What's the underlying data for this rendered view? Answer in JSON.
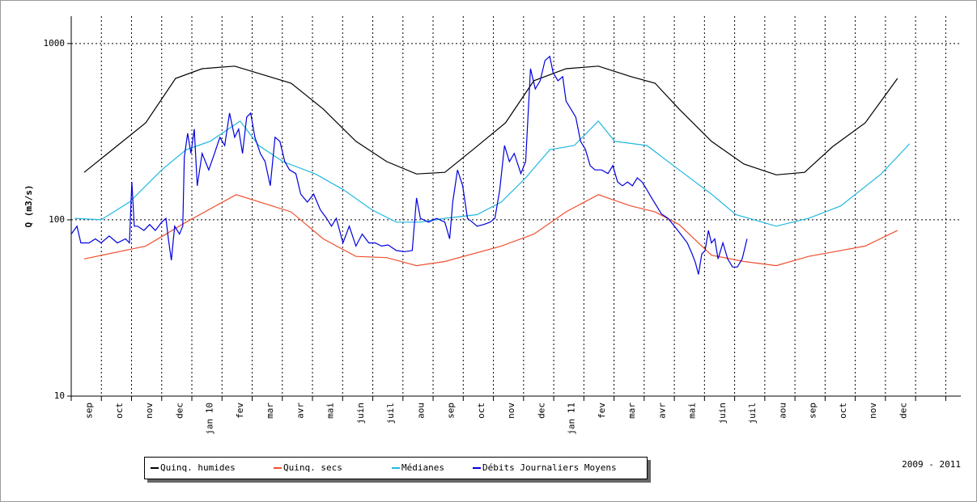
{
  "chart_data": {
    "type": "line",
    "y_label": "Q (m3/s)",
    "annotation": "2009 - 2011",
    "ylog": true,
    "grid": true,
    "ylim": [
      10,
      1430
    ],
    "yticks": [
      10,
      100,
      1000
    ],
    "xlim": [
      0,
      29.5
    ],
    "xticks": [
      {
        "value": 0,
        "label": "sep"
      },
      {
        "value": 1,
        "label": "oct"
      },
      {
        "value": 2,
        "label": "nov"
      },
      {
        "value": 3,
        "label": "dec"
      },
      {
        "value": 4,
        "label": "jan 10"
      },
      {
        "value": 5,
        "label": "fev"
      },
      {
        "value": 6,
        "label": "mar"
      },
      {
        "value": 7,
        "label": "avr"
      },
      {
        "value": 8,
        "label": "mai"
      },
      {
        "value": 9,
        "label": "juin"
      },
      {
        "value": 10,
        "label": "juil"
      },
      {
        "value": 11,
        "label": "aou"
      },
      {
        "value": 12,
        "label": "sep"
      },
      {
        "value": 13,
        "label": "oct"
      },
      {
        "value": 14,
        "label": "nov"
      },
      {
        "value": 15,
        "label": "dec"
      },
      {
        "value": 16,
        "label": "jan 11"
      },
      {
        "value": 17,
        "label": "fev"
      },
      {
        "value": 18,
        "label": "mar"
      },
      {
        "value": 19,
        "label": "avr"
      },
      {
        "value": 20,
        "label": "mai"
      },
      {
        "value": 21,
        "label": "juin"
      },
      {
        "value": 22,
        "label": "juil"
      },
      {
        "value": 23,
        "label": "aou"
      },
      {
        "value": 24,
        "label": "sep"
      },
      {
        "value": 25,
        "label": "oct"
      },
      {
        "value": 26,
        "label": "nov"
      },
      {
        "value": 27,
        "label": "dec"
      },
      {
        "value": 28,
        "label": null
      },
      {
        "value": 29,
        "label": null
      }
    ],
    "series": [
      {
        "name": "Quinq. humides",
        "color": "#000000",
        "x": [
          0.43,
          2.47,
          3.46,
          4.34,
          5.42,
          7.29,
          8.36,
          9.44,
          10.46,
          11.45,
          12.39,
          13.32,
          14.4,
          15.34,
          16.41,
          17.48,
          18.55,
          19.36,
          20.16,
          21.23,
          22.31,
          23.38,
          24.32,
          25.25,
          26.33,
          27.4
        ],
        "values": [
          186,
          355,
          634,
          720,
          745,
          596,
          425,
          279,
          214,
          182,
          186,
          250,
          355,
          615,
          720,
          745,
          650,
          596,
          425,
          279,
          207,
          180,
          186,
          260,
          355,
          634
        ]
      },
      {
        "name": "Quinq. secs",
        "color": "#f05030",
        "x": [
          0.43,
          2.47,
          3.81,
          5.47,
          7.29,
          8.36,
          9.44,
          10.46,
          11.45,
          12.39,
          14.26,
          15.34,
          16.41,
          17.48,
          18.55,
          19.36,
          20.16,
          21.23,
          22.31,
          23.38,
          24.45,
          26.33,
          27.4
        ],
        "values": [
          60,
          71,
          97,
          139,
          111,
          78,
          62,
          61,
          55,
          58,
          71,
          83,
          111,
          139,
          120,
          111,
          94,
          63,
          58,
          55,
          62,
          71,
          87
        ]
      },
      {
        "name": "Médianes",
        "color": "#20b8e0",
        "x": [
          0.11,
          0.99,
          1.93,
          3.0,
          3.81,
          4.61,
          5.6,
          6.22,
          7.02,
          8.1,
          9.03,
          9.97,
          10.78,
          11.58,
          12.39,
          13.46,
          14.26,
          15.07,
          15.87,
          16.68,
          17.48,
          18.02,
          19.09,
          20.16,
          21.23,
          22.04,
          23.38,
          24.45,
          25.52,
          26.86,
          27.8
        ],
        "values": [
          102,
          100,
          126,
          192,
          250,
          279,
          363,
          264,
          214,
          182,
          148,
          114,
          97,
          97,
          102,
          107,
          126,
          173,
          250,
          264,
          363,
          279,
          264,
          192,
          140,
          107,
          92,
          102,
          120,
          182,
          270
        ]
      },
      {
        "name": "Débits Journaliers Moyens",
        "color": "#0000dd",
        "x": [
          0,
          0.19,
          0.32,
          0.59,
          0.8,
          0.99,
          1.26,
          1.53,
          1.8,
          1.93,
          2.01,
          2.09,
          2.2,
          2.41,
          2.6,
          2.79,
          3.0,
          3.14,
          3.22,
          3.32,
          3.43,
          3.59,
          3.7,
          3.75,
          3.86,
          3.97,
          4.08,
          4.18,
          4.34,
          4.56,
          4.75,
          4.93,
          5.09,
          5.25,
          5.42,
          5.55,
          5.68,
          5.82,
          5.95,
          6.09,
          6.27,
          6.43,
          6.6,
          6.76,
          6.92,
          7.08,
          7.24,
          7.45,
          7.61,
          7.83,
          8.04,
          8.26,
          8.47,
          8.63,
          8.79,
          9.01,
          9.22,
          9.44,
          9.65,
          9.87,
          10.08,
          10.29,
          10.51,
          10.78,
          11.05,
          11.31,
          11.45,
          11.58,
          11.85,
          12.12,
          12.39,
          12.55,
          12.65,
          12.81,
          12.98,
          13.14,
          13.3,
          13.46,
          13.67,
          13.89,
          14.05,
          14.21,
          14.37,
          14.53,
          14.69,
          14.91,
          15.07,
          15.23,
          15.39,
          15.55,
          15.71,
          15.87,
          15.98,
          16.14,
          16.3,
          16.41,
          16.57,
          16.73,
          16.89,
          17.05,
          17.21,
          17.37,
          17.59,
          17.8,
          17.96,
          18.12,
          18.28,
          18.45,
          18.61,
          18.77,
          18.93,
          19.09,
          19.25,
          19.41,
          19.57,
          19.79,
          20.0,
          20.21,
          20.43,
          20.59,
          20.7,
          20.8,
          20.91,
          21.02,
          21.13,
          21.23,
          21.34,
          21.45,
          21.61,
          21.77,
          21.93,
          22.09,
          22.25,
          22.41
        ],
        "values": [
          83,
          92,
          74,
          74,
          78,
          74,
          81,
          74,
          78,
          74,
          164,
          92,
          92,
          87,
          94,
          87,
          97,
          102,
          78,
          59,
          92,
          83,
          92,
          226,
          310,
          238,
          327,
          156,
          238,
          192,
          238,
          294,
          264,
          403,
          294,
          327,
          238,
          383,
          403,
          294,
          238,
          214,
          156,
          294,
          279,
          214,
          192,
          183,
          140,
          126,
          140,
          114,
          102,
          92,
          102,
          74,
          92,
          71,
          83,
          74,
          74,
          71,
          72,
          67,
          66,
          67,
          133,
          102,
          97,
          102,
          97,
          78,
          126,
          192,
          156,
          102,
          97,
          92,
          94,
          97,
          102,
          148,
          264,
          214,
          238,
          183,
          214,
          721,
          553,
          615,
          801,
          845,
          684,
          615,
          649,
          472,
          425,
          383,
          279,
          251,
          203,
          192,
          192,
          183,
          203,
          164,
          156,
          164,
          156,
          173,
          164,
          148,
          133,
          120,
          108,
          102,
          92,
          83,
          74,
          64,
          57,
          49,
          64,
          67,
          87,
          74,
          78,
          60,
          74,
          60,
          54,
          54,
          60,
          78
        ]
      }
    ]
  }
}
